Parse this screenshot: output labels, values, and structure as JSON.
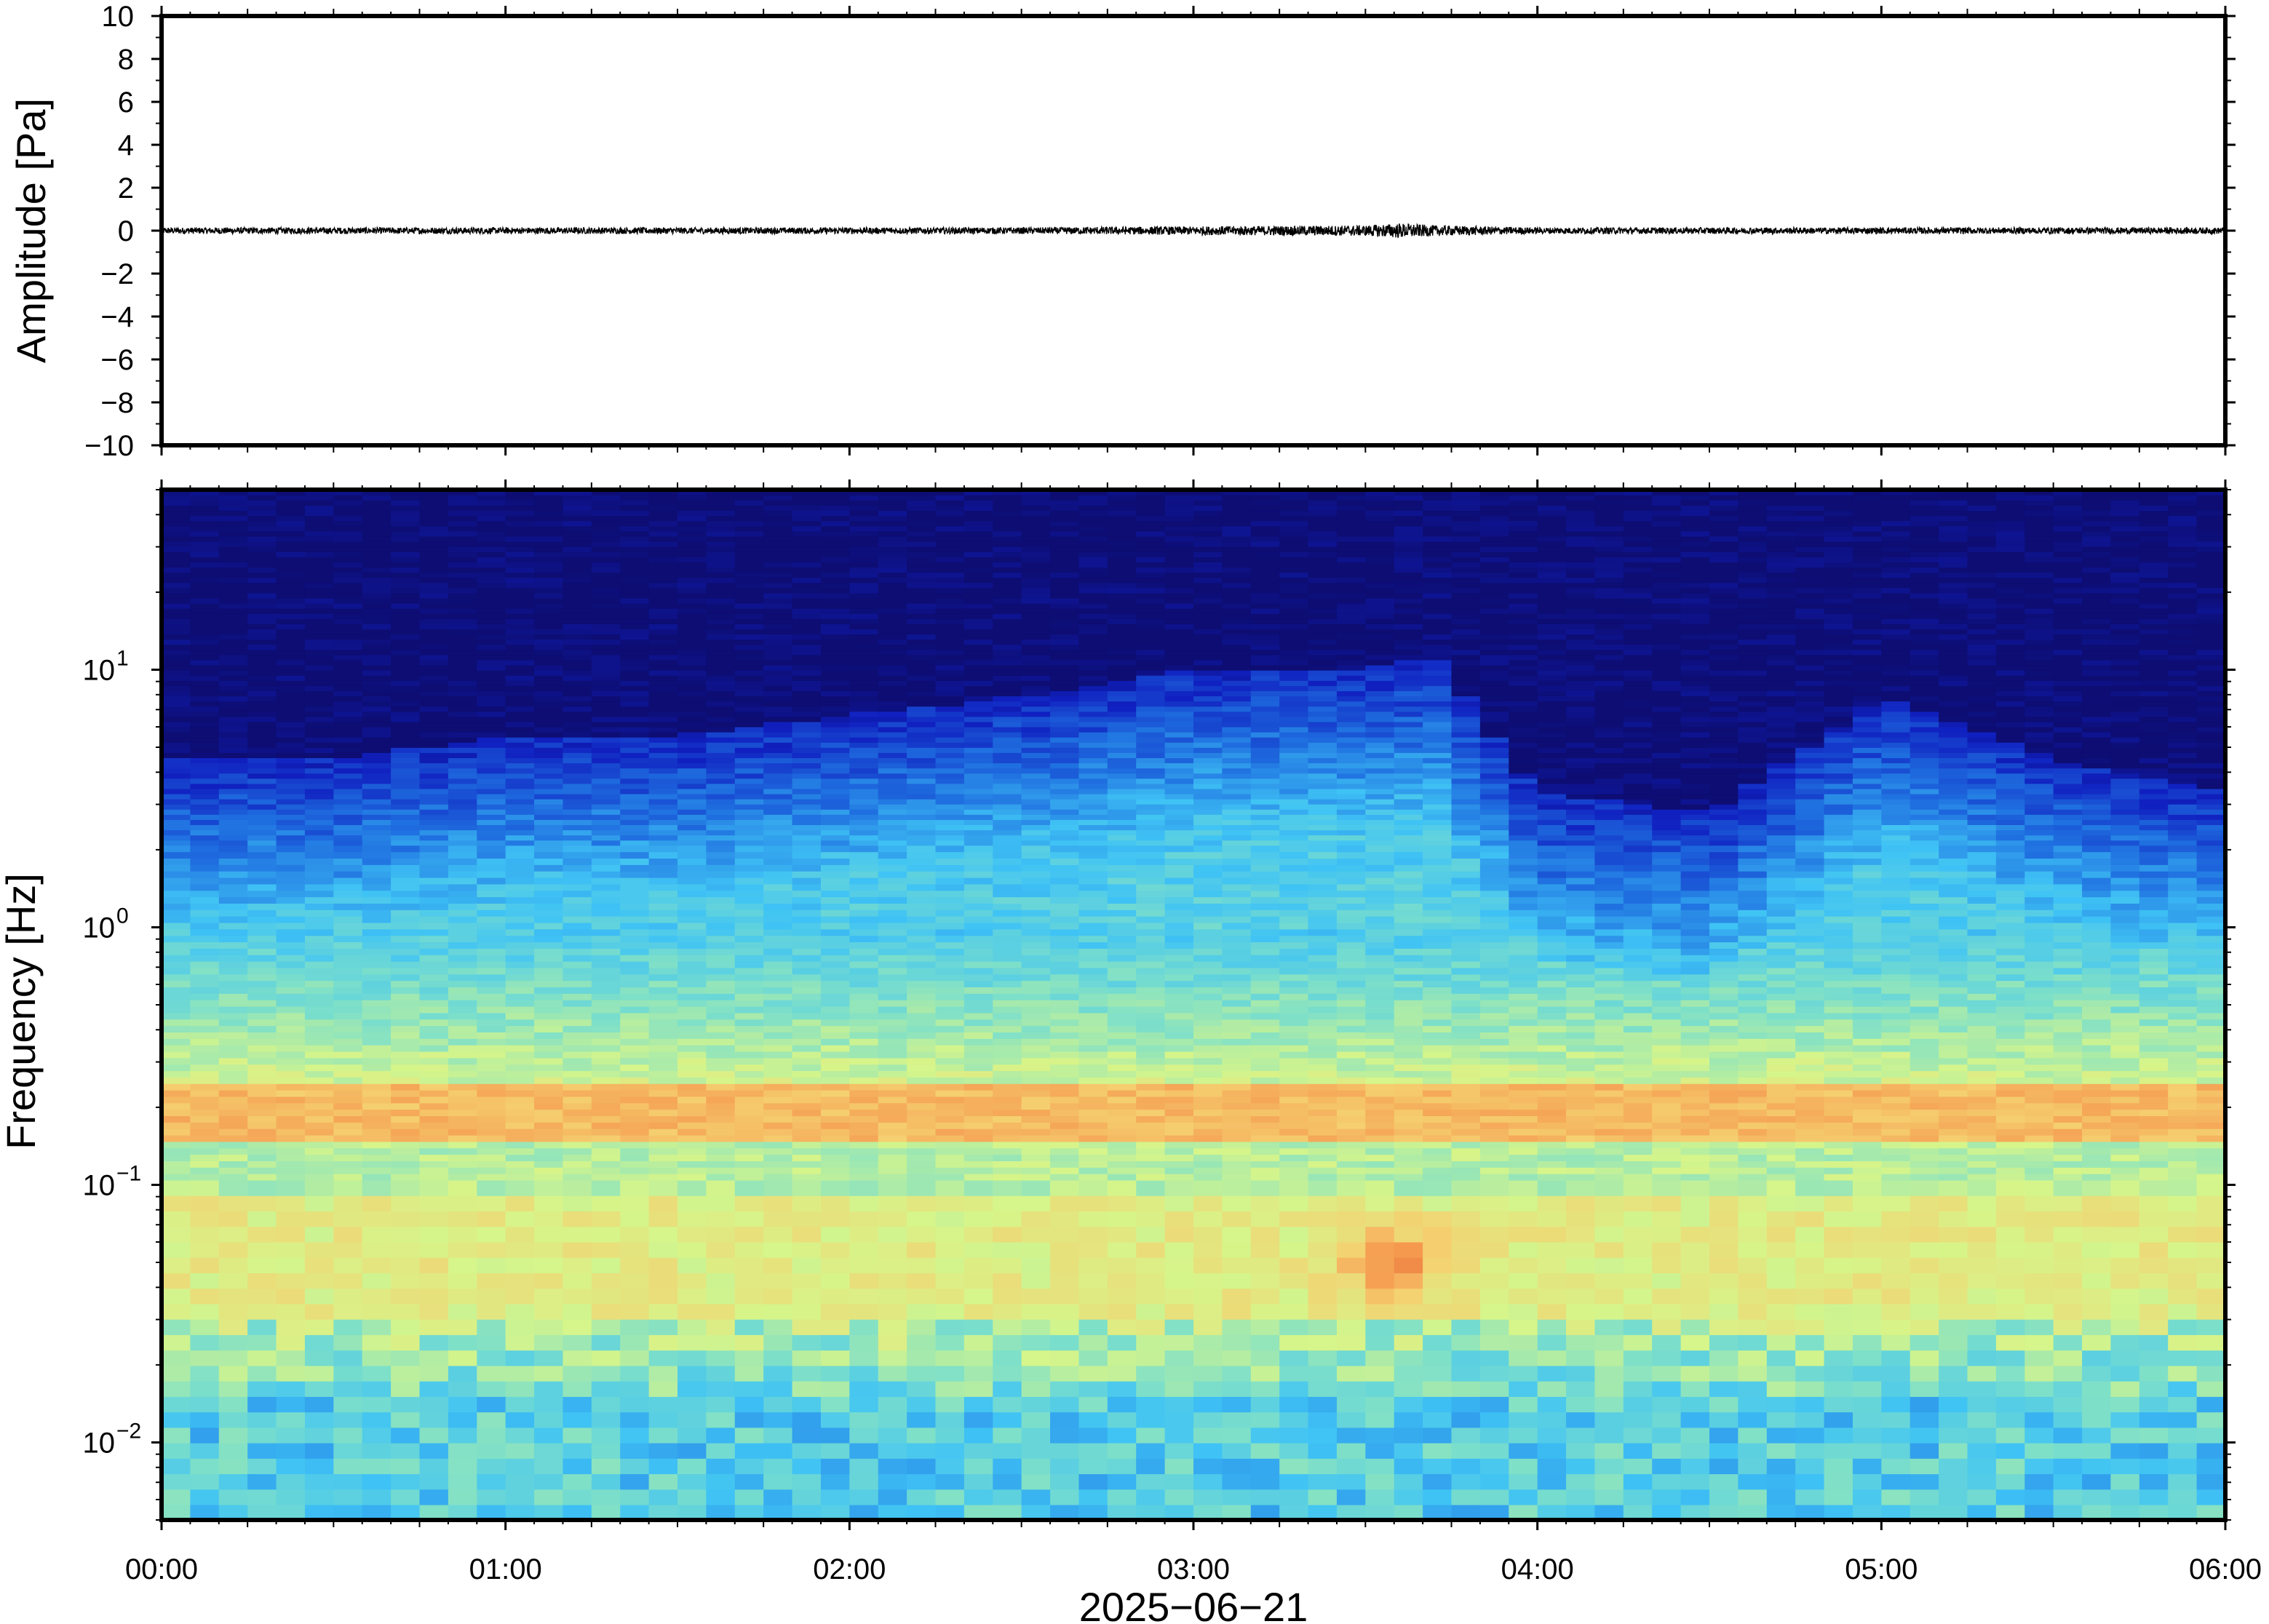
{
  "chart_data": [
    {
      "type": "line",
      "panel": "waveform",
      "ylabel": "Amplitude [Pa]",
      "ylim": [
        -10,
        10
      ],
      "yticks": [
        "10",
        "8",
        "6",
        "4",
        "2",
        "0",
        "−2",
        "−4",
        "−6",
        "−8",
        "−10"
      ],
      "ytick_values": [
        10,
        8,
        6,
        4,
        2,
        0,
        -2,
        -4,
        -6,
        -8,
        -10
      ],
      "series": [
        {
          "x_hours": [
            0,
            0.5,
            1,
            1.5,
            2,
            2.5,
            3,
            3.5,
            3.6,
            3.7,
            4,
            4.5,
            5,
            5.5,
            6
          ],
          "amplitude_envelope": [
            0.15,
            0.15,
            0.15,
            0.15,
            0.15,
            0.15,
            0.2,
            0.25,
            0.35,
            0.25,
            0.15,
            0.15,
            0.15,
            0.15,
            0.15
          ],
          "color": "#000000"
        }
      ],
      "grid": false
    },
    {
      "type": "heatmap",
      "panel": "spectrogram",
      "ylabel": "Frequency [Hz]",
      "xlabel": "2025−06−21",
      "yscale": "log",
      "ylim": [
        0.005,
        50
      ],
      "yticks": [
        {
          "value": 10,
          "base": "10",
          "exp": "1"
        },
        {
          "value": 1,
          "base": "10",
          "exp": "0"
        },
        {
          "value": 0.1,
          "base": "10",
          "exp": "−1"
        },
        {
          "value": 0.01,
          "base": "10",
          "exp": "−2"
        }
      ],
      "xticks": [
        "00:00",
        "01:00",
        "02:00",
        "03:00",
        "04:00",
        "05:00",
        "06:00"
      ],
      "xtick_values_hours": [
        0,
        1,
        2,
        3,
        4,
        5,
        6
      ],
      "xlim_hours": [
        0,
        6
      ],
      "colormap": "jet",
      "colormap_stops": [
        "#0d0d73",
        "#1020c0",
        "#1f6fe0",
        "#3fc3f5",
        "#7fe0c8",
        "#d6f58a",
        "#f5d070",
        "#f59a50",
        "#e06030"
      ],
      "features": {
        "microbarom_band_hz": [
          0.15,
          0.25
        ],
        "strong_low_band_hz": [
          0.03,
          0.09
        ],
        "upper_cutoff_hz_by_hour": [
          [
            0,
            4
          ],
          [
            0.5,
            4
          ],
          [
            1,
            5
          ],
          [
            1.5,
            5
          ],
          [
            2,
            6
          ],
          [
            2.5,
            7
          ],
          [
            3,
            9
          ],
          [
            3.5,
            9
          ],
          [
            3.7,
            10
          ],
          [
            4,
            3
          ],
          [
            4.5,
            2.5
          ],
          [
            5,
            7
          ],
          [
            5.5,
            4
          ],
          [
            6,
            3
          ]
        ],
        "hotspot": {
          "hour": 3.58,
          "freq_hz": 0.05
        }
      },
      "grid": false
    }
  ],
  "colors": {
    "frame": "#000000",
    "background": "#ffffff",
    "trace": "#000000"
  }
}
